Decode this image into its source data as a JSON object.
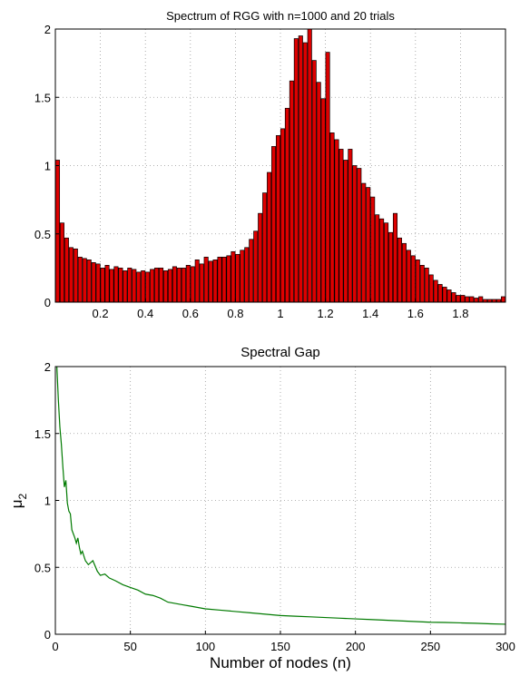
{
  "chart_data": [
    {
      "type": "bar",
      "title": "Spectrum of RGG with  n=1000 and 20 trials",
      "xlabel": "",
      "ylabel": "",
      "xlim": [
        0,
        2
      ],
      "ylim": [
        0,
        2
      ],
      "grid": true,
      "bar_color": "#dd0000",
      "x_ticks": [
        0.2,
        0.4,
        0.6,
        0.8,
        1,
        1.2,
        1.4,
        1.6,
        1.8
      ],
      "x_tick_labels": [
        "0.2",
        "0.4",
        "0.6",
        "0.8",
        "1",
        "1.2",
        "1.4",
        "1.6",
        "1.8"
      ],
      "y_ticks": [
        0,
        0.5,
        1,
        1.5,
        2
      ],
      "y_tick_labels": [
        "0",
        "0.5",
        "1",
        "1.5",
        "2"
      ],
      "bin_start": 0,
      "bin_width": 0.02,
      "values": [
        1.04,
        0.58,
        0.47,
        0.4,
        0.39,
        0.33,
        0.32,
        0.31,
        0.29,
        0.28,
        0.25,
        0.27,
        0.24,
        0.26,
        0.25,
        0.23,
        0.25,
        0.24,
        0.22,
        0.23,
        0.22,
        0.24,
        0.25,
        0.25,
        0.23,
        0.24,
        0.26,
        0.25,
        0.25,
        0.27,
        0.26,
        0.31,
        0.28,
        0.33,
        0.3,
        0.31,
        0.33,
        0.33,
        0.34,
        0.37,
        0.35,
        0.38,
        0.4,
        0.46,
        0.52,
        0.65,
        0.8,
        0.95,
        1.14,
        1.22,
        1.27,
        1.42,
        1.62,
        1.93,
        1.95,
        1.9,
        2.0,
        1.77,
        1.61,
        1.49,
        1.83,
        1.24,
        1.19,
        1.12,
        1.04,
        1.12,
        1.0,
        0.98,
        0.87,
        0.84,
        0.77,
        0.64,
        0.61,
        0.58,
        0.51,
        0.65,
        0.47,
        0.43,
        0.38,
        0.34,
        0.31,
        0.27,
        0.25,
        0.2,
        0.16,
        0.13,
        0.11,
        0.09,
        0.07,
        0.05,
        0.05,
        0.04,
        0.04,
        0.03,
        0.04,
        0.02,
        0.02,
        0.02,
        0.02,
        0.04
      ]
    },
    {
      "type": "line",
      "title": "Spectral Gap",
      "xlabel": "Number of nodes (n)",
      "ylabel": "μ",
      "ylabel_subscript": "2",
      "xlim": [
        0,
        300
      ],
      "ylim": [
        0,
        2
      ],
      "grid": true,
      "line_color": "#007a00",
      "x_ticks": [
        0,
        50,
        100,
        150,
        200,
        250,
        300
      ],
      "x_tick_labels": [
        "0",
        "50",
        "100",
        "150",
        "200",
        "250",
        "300"
      ],
      "y_ticks": [
        0,
        0.5,
        1,
        1.5,
        2
      ],
      "y_tick_labels": [
        "0",
        "0.5",
        "1",
        "1.5",
        "2"
      ],
      "series": [
        {
          "x": [
            1,
            2,
            3,
            4,
            5,
            6,
            7,
            8,
            9,
            10,
            11,
            12,
            13,
            14,
            15,
            16,
            17,
            18,
            20,
            22,
            25,
            28,
            30,
            33,
            36,
            40,
            45,
            50,
            55,
            60,
            65,
            70,
            75,
            80,
            85,
            90,
            95,
            100,
            110,
            120,
            130,
            140,
            150,
            160,
            170,
            180,
            190,
            200,
            210,
            220,
            230,
            240,
            250,
            260,
            270,
            280,
            290,
            300
          ],
          "y": [
            2.0,
            1.75,
            1.55,
            1.42,
            1.25,
            1.1,
            1.15,
            0.98,
            0.92,
            0.9,
            0.78,
            0.75,
            0.72,
            0.68,
            0.72,
            0.65,
            0.6,
            0.62,
            0.55,
            0.52,
            0.55,
            0.47,
            0.44,
            0.45,
            0.42,
            0.4,
            0.37,
            0.35,
            0.33,
            0.3,
            0.29,
            0.27,
            0.24,
            0.23,
            0.22,
            0.21,
            0.2,
            0.19,
            0.18,
            0.17,
            0.16,
            0.15,
            0.14,
            0.135,
            0.13,
            0.125,
            0.12,
            0.115,
            0.11,
            0.105,
            0.1,
            0.095,
            0.09,
            0.088,
            0.085,
            0.082,
            0.078,
            0.075
          ]
        }
      ]
    }
  ]
}
